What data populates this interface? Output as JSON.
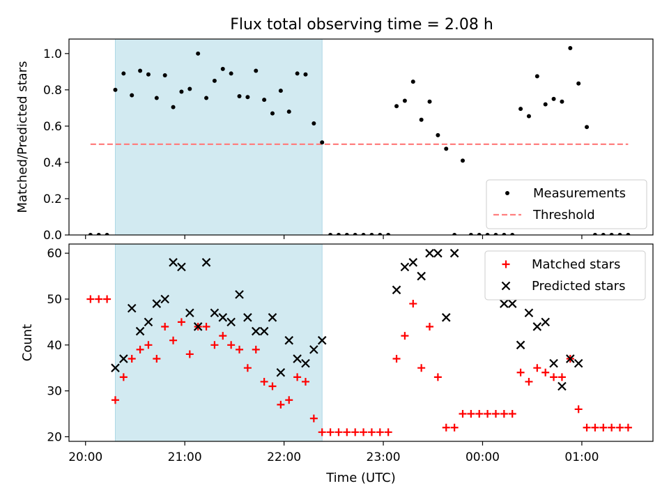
{
  "title": "Flux total observing time = 2.08 h",
  "colors": {
    "highlight": "#add8e6",
    "measurement": "#000000",
    "threshold": "#ff7f7f",
    "matched": "#ff0000",
    "predicted": "#000000"
  },
  "chart_data": [
    {
      "type": "scatter",
      "ylabel": "Matched/Predicted stars",
      "ylim": [
        0,
        1.08
      ],
      "yticks": [
        0.0,
        0.2,
        0.4,
        0.6,
        0.8,
        1.0
      ],
      "ytick_labels": [
        "0.0",
        "0.2",
        "0.4",
        "0.6",
        "0.8",
        "1.0"
      ],
      "xlim": [
        "19:50",
        "01:43"
      ],
      "highlight_span": [
        "20:18",
        "22:23"
      ],
      "legend": {
        "position": "lower-right",
        "entries": [
          "Measurements",
          "Threshold"
        ]
      },
      "threshold": {
        "name": "Threshold",
        "value": 0.5,
        "x_range": [
          "20:03",
          "01:28"
        ]
      },
      "series": [
        {
          "name": "Measurements",
          "marker": "dot",
          "x": [
            "20:03",
            "20:08",
            "20:13",
            "20:18",
            "20:23",
            "20:28",
            "20:33",
            "20:38",
            "20:43",
            "20:48",
            "20:53",
            "20:58",
            "21:03",
            "21:08",
            "21:13",
            "21:18",
            "21:23",
            "21:28",
            "21:33",
            "21:38",
            "21:43",
            "21:48",
            "21:53",
            "21:58",
            "22:03",
            "22:08",
            "22:13",
            "22:18",
            "22:23",
            "22:28",
            "22:33",
            "22:38",
            "22:43",
            "22:48",
            "22:53",
            "22:58",
            "23:03",
            "23:08",
            "23:13",
            "23:18",
            "23:23",
            "23:28",
            "23:33",
            "23:38",
            "23:43",
            "23:48",
            "23:53",
            "23:58",
            "00:03",
            "00:08",
            "00:13",
            "00:18",
            "00:23",
            "00:28",
            "00:33",
            "00:38",
            "00:43",
            "00:48",
            "00:53",
            "00:58",
            "01:03",
            "01:08",
            "01:13",
            "01:18",
            "01:23",
            "01:28"
          ],
          "y": [
            0,
            0,
            0,
            0.8,
            0.89,
            0.77,
            0.905,
            0.885,
            0.755,
            0.88,
            0.705,
            0.79,
            0.805,
            1.0,
            0.755,
            0.85,
            0.915,
            0.89,
            0.765,
            0.76,
            0.905,
            0.745,
            0.67,
            0.795,
            0.68,
            0.89,
            0.885,
            0.615,
            0.51,
            0,
            0,
            0,
            0,
            0,
            0,
            0,
            0,
            0.71,
            0.74,
            0.845,
            0.635,
            0.735,
            0.55,
            0.475,
            0,
            0.41,
            0,
            0,
            0,
            0,
            0,
            0,
            0.695,
            0.655,
            0.875,
            0.72,
            0.75,
            0.735,
            1.03,
            0.835,
            0.595,
            0,
            0,
            0,
            0,
            0
          ]
        }
      ]
    },
    {
      "type": "scatter",
      "xlabel": "Time (UTC)",
      "ylabel": "Count",
      "ylim": [
        19,
        62
      ],
      "yticks": [
        20,
        30,
        40,
        50,
        60
      ],
      "ytick_labels": [
        "20",
        "30",
        "40",
        "50",
        "60"
      ],
      "xlim": [
        "19:50",
        "01:43"
      ],
      "xticks": [
        "20:00",
        "21:00",
        "22:00",
        "23:00",
        "00:00",
        "01:00"
      ],
      "xtick_labels": [
        "20:00",
        "21:00",
        "22:00",
        "23:00",
        "00:00",
        "01:00"
      ],
      "highlight_span": [
        "20:18",
        "22:23"
      ],
      "legend": {
        "position": "top-right",
        "entries": [
          "Matched stars",
          "Predicted stars"
        ]
      },
      "series": [
        {
          "name": "Matched stars",
          "marker": "plus",
          "x": [
            "20:03",
            "20:08",
            "20:13",
            "20:18",
            "20:23",
            "20:28",
            "20:33",
            "20:38",
            "20:43",
            "20:48",
            "20:53",
            "20:58",
            "21:03",
            "21:08",
            "21:13",
            "21:18",
            "21:23",
            "21:28",
            "21:33",
            "21:38",
            "21:43",
            "21:48",
            "21:53",
            "21:58",
            "22:03",
            "22:08",
            "22:13",
            "22:18",
            "22:23",
            "22:28",
            "22:33",
            "22:38",
            "22:43",
            "22:48",
            "22:53",
            "22:58",
            "23:03",
            "23:08",
            "23:13",
            "23:18",
            "23:23",
            "23:28",
            "23:33",
            "23:38",
            "23:43",
            "23:48",
            "23:53",
            "23:58",
            "00:03",
            "00:08",
            "00:13",
            "00:18",
            "00:23",
            "00:28",
            "00:33",
            "00:38",
            "00:43",
            "00:48",
            "00:53",
            "00:58",
            "01:03",
            "01:08",
            "01:13",
            "01:18",
            "01:23",
            "01:28"
          ],
          "y": [
            50,
            50,
            50,
            28,
            33,
            37,
            39,
            40,
            37,
            44,
            41,
            45,
            38,
            44,
            44,
            40,
            42,
            40,
            39,
            35,
            39,
            32,
            31,
            27,
            28,
            33,
            32,
            24,
            21,
            21,
            21,
            21,
            21,
            21,
            21,
            21,
            21,
            37,
            42,
            49,
            35,
            44,
            33,
            22,
            22,
            25,
            25,
            25,
            25,
            25,
            25,
            25,
            34,
            32,
            35,
            34,
            33,
            33,
            37,
            26,
            22,
            22,
            22,
            22,
            22,
            22
          ]
        },
        {
          "name": "Predicted stars",
          "marker": "x",
          "x": [
            "20:18",
            "20:23",
            "20:28",
            "20:33",
            "20:38",
            "20:43",
            "20:48",
            "20:53",
            "20:58",
            "21:03",
            "21:08",
            "21:13",
            "21:18",
            "21:23",
            "21:28",
            "21:33",
            "21:38",
            "21:43",
            "21:48",
            "21:53",
            "21:58",
            "22:03",
            "22:08",
            "22:13",
            "22:18",
            "22:23",
            "23:08",
            "23:13",
            "23:18",
            "23:23",
            "23:28",
            "23:33",
            "23:38",
            "23:43",
            "00:13",
            "00:18",
            "00:23",
            "00:28",
            "00:33",
            "00:38",
            "00:43",
            "00:48",
            "00:53",
            "00:58"
          ],
          "y": [
            35,
            37,
            48,
            43,
            45,
            49,
            50,
            58,
            57,
            47,
            44,
            58,
            47,
            46,
            45,
            51,
            46,
            43,
            43,
            46,
            34,
            41,
            37,
            36,
            39,
            41,
            52,
            57,
            58,
            55,
            60,
            60,
            46,
            60,
            49,
            49,
            40,
            47,
            44,
            45,
            36,
            31,
            37,
            36
          ]
        }
      ]
    }
  ]
}
